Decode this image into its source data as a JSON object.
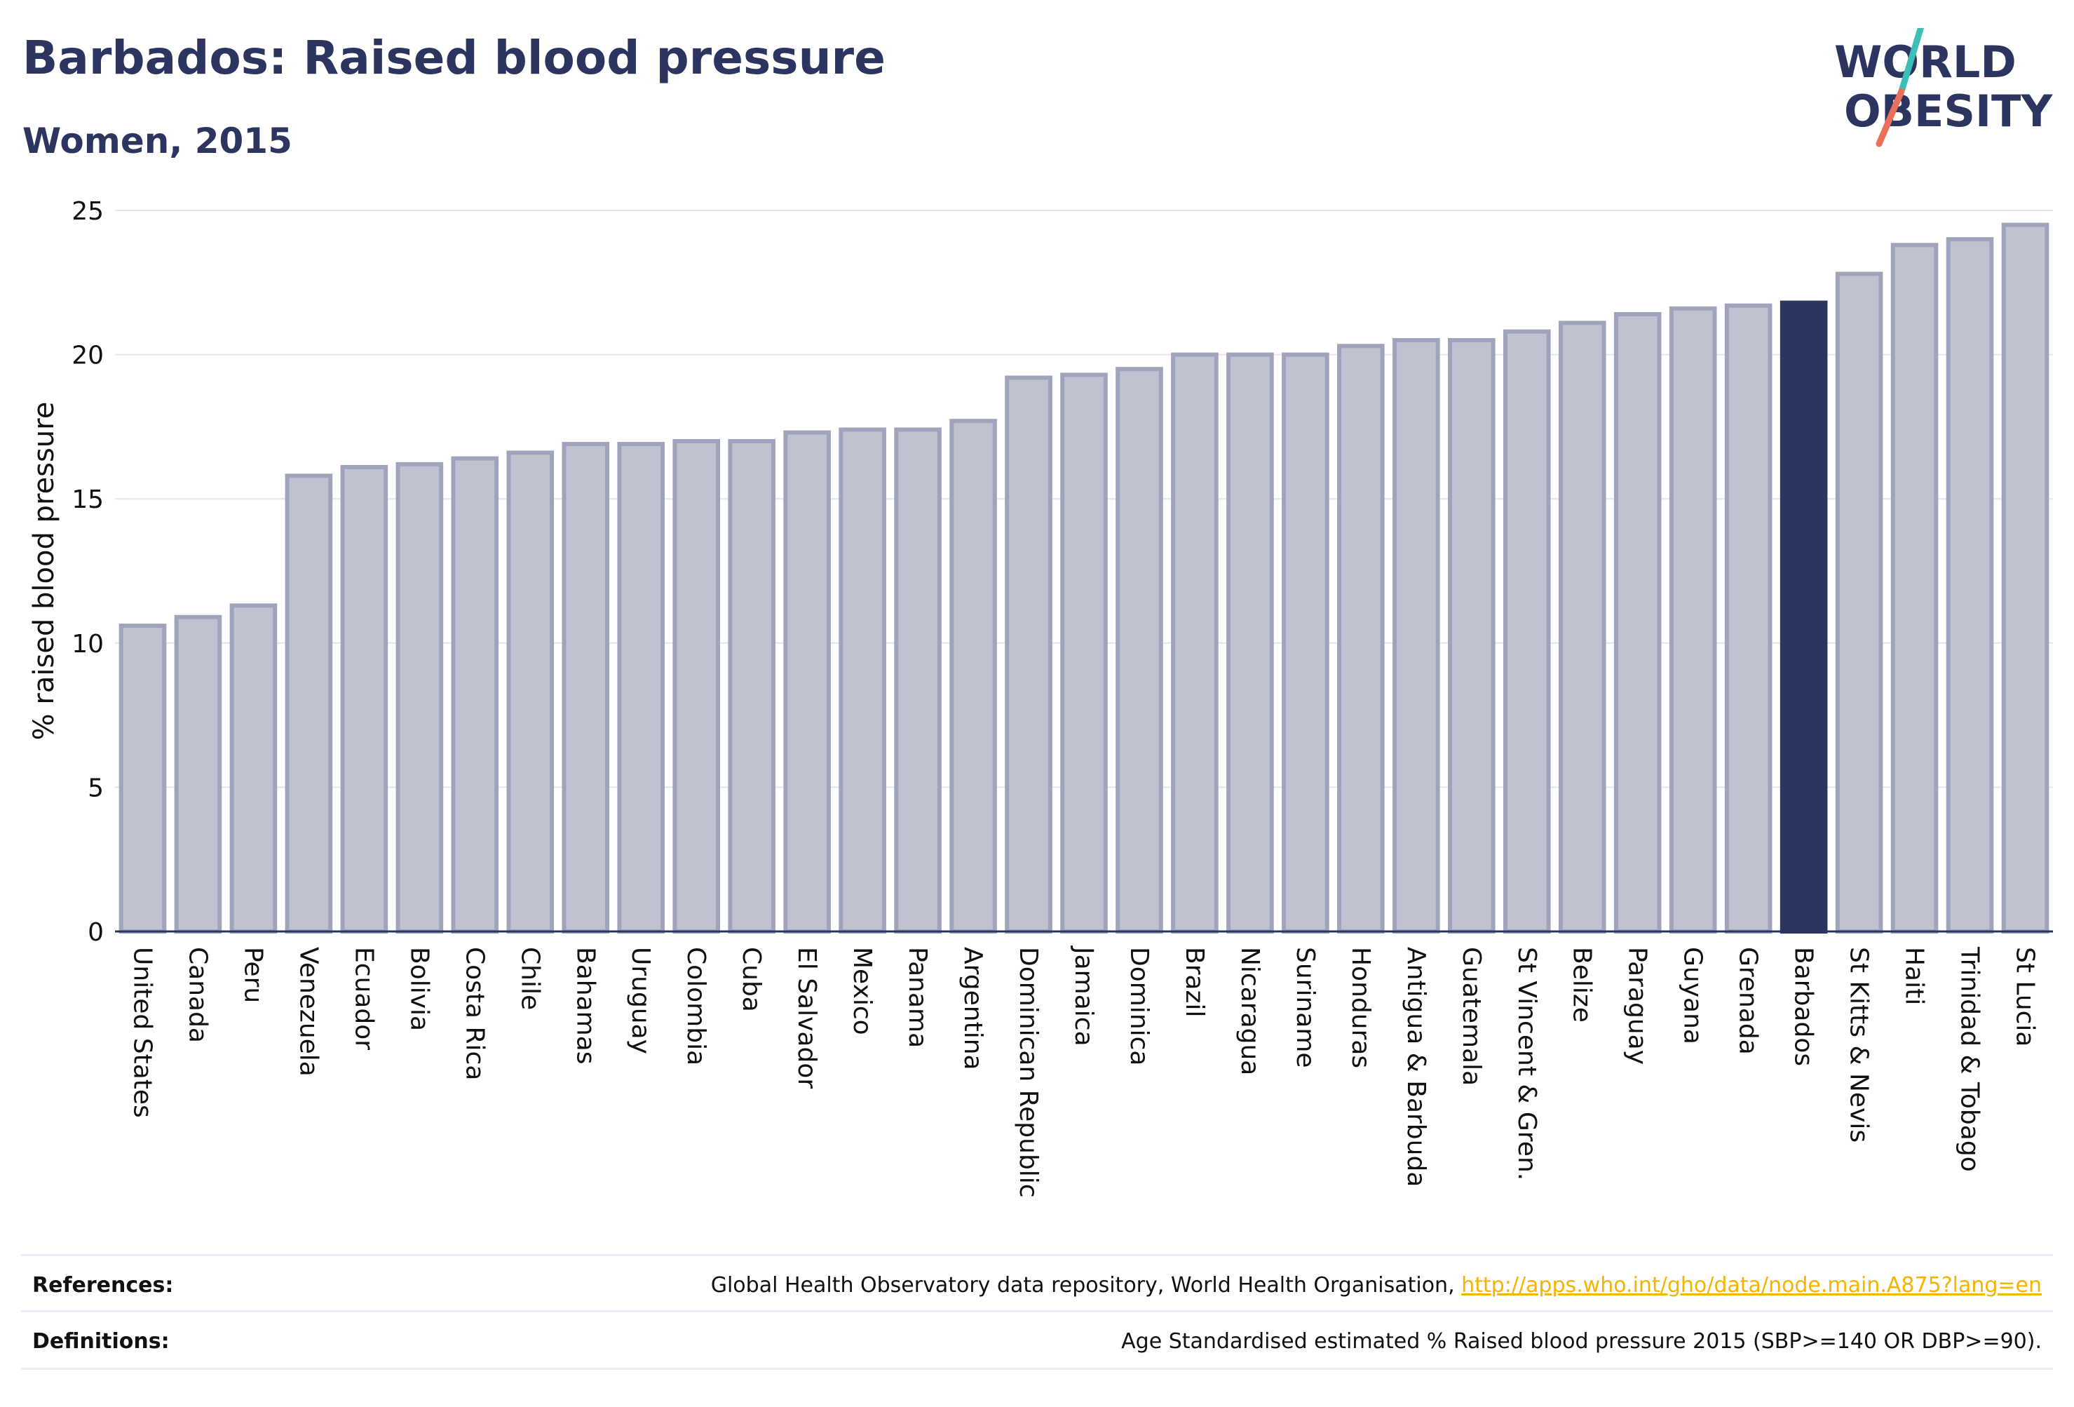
{
  "header": {
    "title": "Barbados: Raised blood pressure",
    "subtitle": "Women, 2015"
  },
  "logo": {
    "line1": "WORLD",
    "line2": "OBESITY"
  },
  "colors": {
    "bar_fill": "#c0c3cf",
    "bar_stroke": "#9fa4bc",
    "highlight": "#2b3560",
    "grid": "#e4e6ee",
    "axis": "#2b3560",
    "text": "#111111",
    "link": "#f5b400",
    "logo_slash_top": "#3bbfb7",
    "logo_slash_bottom": "#e8705c"
  },
  "chart_data": {
    "type": "bar",
    "ylabel": "% raised blood pressure",
    "ylim": [
      0,
      25
    ],
    "yticks": [
      0,
      5,
      10,
      15,
      20,
      25
    ],
    "grid": true,
    "highlight": "Barbados",
    "categories": [
      "United States",
      "Canada",
      "Peru",
      "Venezuela",
      "Ecuador",
      "Bolivia",
      "Costa Rica",
      "Chile",
      "Bahamas",
      "Uruguay",
      "Colombia",
      "Cuba",
      "El Salvador",
      "Mexico",
      "Panama",
      "Argentina",
      "Dominican Republic",
      "Jamaica",
      "Dominica",
      "Brazil",
      "Nicaragua",
      "Suriname",
      "Honduras",
      "Antigua & Barbuda",
      "Guatemala",
      "St Vincent & Gren.",
      "Belize",
      "Paraguay",
      "Guyana",
      "Grenada",
      "Barbados",
      "St Kitts & Nevis",
      "Haiti",
      "Trinidad & Tobago",
      "St Lucia"
    ],
    "values": [
      10.6,
      10.9,
      11.3,
      15.8,
      16.1,
      16.2,
      16.4,
      16.6,
      16.9,
      16.9,
      17.0,
      17.0,
      17.3,
      17.4,
      17.4,
      17.7,
      19.2,
      19.3,
      19.5,
      20.0,
      20.0,
      20.0,
      20.3,
      20.5,
      20.5,
      20.8,
      21.1,
      21.4,
      21.6,
      21.7,
      21.8,
      22.8,
      23.8,
      24.0,
      24.5
    ]
  },
  "footer": {
    "references_label": "References:",
    "references_text": "Global Health Observatory data repository, World Health Organisation, ",
    "references_link": "http://apps.who.int/gho/data/node.main.A875?lang=en",
    "definitions_label": "Definitions:",
    "definitions_text": "Age Standardised estimated % Raised blood pressure 2015 (SBP>=140 OR DBP>=90)."
  }
}
